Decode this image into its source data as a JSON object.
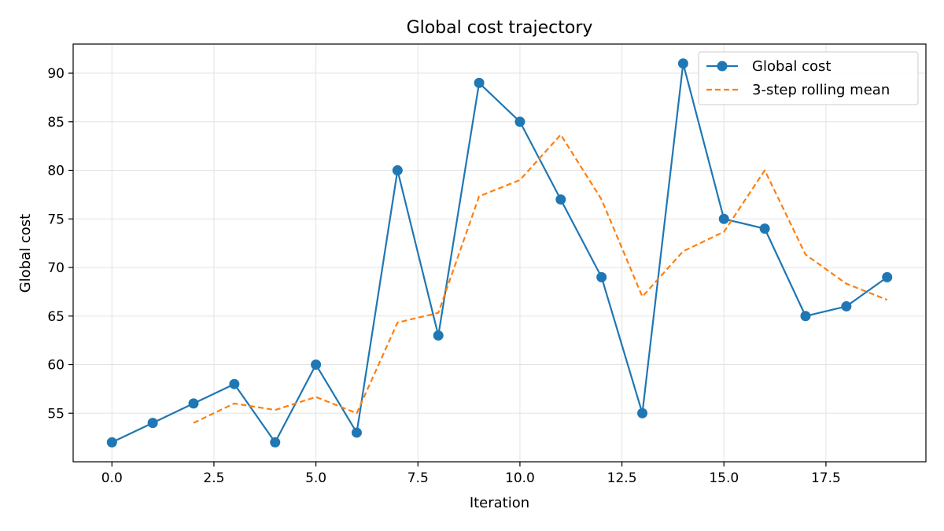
{
  "chart_data": {
    "type": "line",
    "title": "Global cost trajectory",
    "xlabel": "Iteration",
    "ylabel": "Global cost",
    "xlim": [
      -0.95,
      19.95
    ],
    "ylim": [
      50.0,
      93.0
    ],
    "xticks": [
      0.0,
      2.5,
      5.0,
      7.5,
      10.0,
      12.5,
      15.0,
      17.5
    ],
    "xtick_labels": [
      "0.0",
      "2.5",
      "5.0",
      "7.5",
      "10.0",
      "12.5",
      "15.0",
      "17.5"
    ],
    "yticks": [
      55,
      60,
      65,
      70,
      75,
      80,
      85,
      90
    ],
    "ytick_labels": [
      "55",
      "60",
      "65",
      "70",
      "75",
      "80",
      "85",
      "90"
    ],
    "grid": true,
    "legend_position": "top-right",
    "series": [
      {
        "name": "Global cost",
        "style": "solid-marker",
        "color": "#1f77b4",
        "x": [
          0,
          1,
          2,
          3,
          4,
          5,
          6,
          7,
          8,
          9,
          10,
          11,
          12,
          13,
          14,
          15,
          16,
          17,
          18,
          19
        ],
        "y": [
          52,
          54,
          56,
          58,
          52,
          60,
          53,
          80,
          63,
          89,
          85,
          77,
          69,
          55,
          91,
          75,
          74,
          65,
          66,
          69
        ]
      },
      {
        "name": "3-step rolling mean",
        "style": "dashed",
        "color": "#ff7f0e",
        "x": [
          2,
          3,
          4,
          5,
          6,
          7,
          8,
          9,
          10,
          11,
          12,
          13,
          14,
          15,
          16,
          17,
          18,
          19
        ],
        "y": [
          54.0,
          56.0,
          55.33,
          56.67,
          55.0,
          64.33,
          65.33,
          77.33,
          79.0,
          83.67,
          77.0,
          67.0,
          71.67,
          73.67,
          80.0,
          71.33,
          68.33,
          66.67
        ]
      }
    ]
  }
}
